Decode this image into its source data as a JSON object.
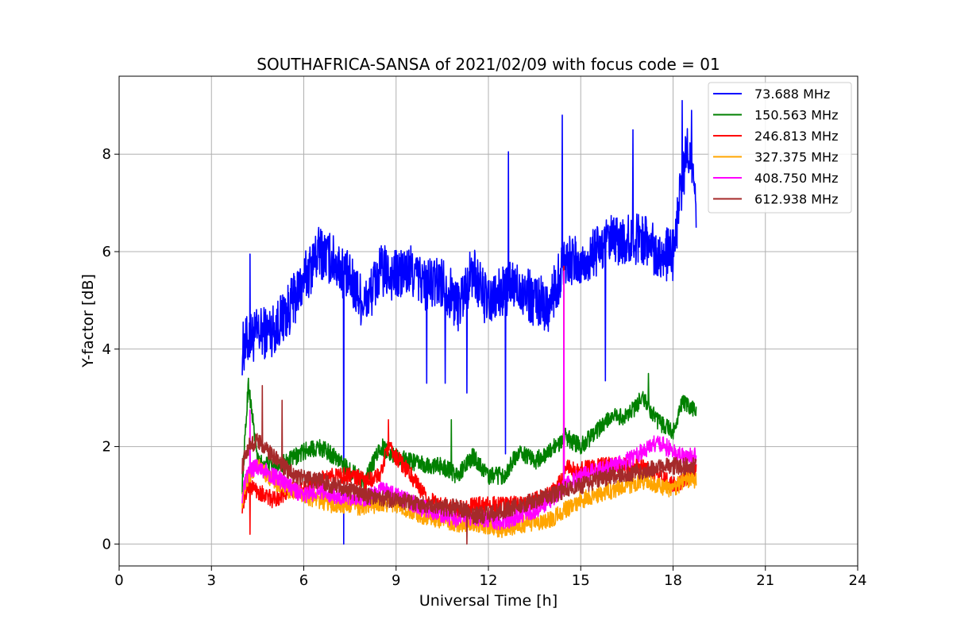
{
  "chart_data": {
    "type": "line",
    "title": "SOUTHAFRICA-SANSA of 2021/02/09 with focus code = 01",
    "xlabel": "Universal Time [h]",
    "ylabel": "Y-factor [dB]",
    "xlim": [
      0,
      24
    ],
    "ylim": [
      -0.45,
      9.6
    ],
    "xticks": [
      0,
      3,
      6,
      9,
      12,
      15,
      18,
      21,
      24
    ],
    "yticks": [
      0,
      2,
      4,
      6,
      8
    ],
    "grid": true,
    "legend_position": "top-right",
    "series": [
      {
        "name": " 73.688 MHz",
        "color": "#0000ff",
        "x": [
          4.0,
          4.2,
          4.5,
          5.0,
          5.5,
          6.0,
          6.5,
          7.0,
          7.5,
          8.0,
          8.5,
          9.0,
          9.5,
          10.0,
          10.5,
          11.0,
          11.5,
          12.0,
          12.5,
          13.0,
          13.5,
          14.0,
          14.5,
          15.0,
          15.5,
          16.0,
          16.5,
          17.0,
          17.5,
          18.0,
          18.3,
          18.5,
          18.75
        ],
        "y": [
          4.0,
          4.2,
          4.3,
          4.4,
          4.8,
          5.4,
          6.0,
          5.8,
          5.4,
          4.9,
          5.6,
          5.5,
          5.6,
          5.3,
          5.4,
          4.9,
          5.6,
          4.9,
          5.2,
          5.3,
          5.0,
          4.9,
          5.9,
          5.7,
          6.0,
          6.2,
          6.2,
          6.3,
          6.0,
          5.9,
          7.5,
          8.2,
          6.8
        ],
        "spikes": [
          {
            "x": 4.25,
            "y": 5.95
          },
          {
            "x": 7.3,
            "y": 0.0
          },
          {
            "x": 10.0,
            "y": 3.3
          },
          {
            "x": 10.6,
            "y": 3.3
          },
          {
            "x": 11.3,
            "y": 3.1
          },
          {
            "x": 12.55,
            "y": 1.85
          },
          {
            "x": 12.65,
            "y": 8.05
          },
          {
            "x": 14.4,
            "y": 8.8
          },
          {
            "x": 15.8,
            "y": 3.35
          },
          {
            "x": 16.7,
            "y": 8.5
          },
          {
            "x": 18.3,
            "y": 9.1
          },
          {
            "x": 18.6,
            "y": 8.9
          }
        ]
      },
      {
        "name": "150.563 MHz",
        "color": "#008000",
        "x": [
          4.0,
          4.2,
          4.5,
          5.0,
          5.5,
          6.0,
          6.5,
          7.0,
          7.5,
          8.0,
          8.5,
          9.0,
          9.5,
          10.0,
          10.5,
          11.0,
          11.5,
          12.0,
          12.5,
          13.0,
          13.5,
          14.0,
          14.5,
          15.0,
          15.5,
          16.0,
          16.5,
          17.0,
          17.5,
          18.0,
          18.3,
          18.5,
          18.75
        ],
        "y": [
          1.2,
          3.3,
          1.7,
          1.6,
          1.7,
          1.9,
          2.0,
          1.8,
          1.5,
          1.3,
          2.0,
          1.8,
          1.7,
          1.6,
          1.6,
          1.4,
          1.8,
          1.4,
          1.4,
          1.9,
          1.7,
          1.9,
          2.2,
          2.0,
          2.3,
          2.6,
          2.6,
          3.0,
          2.5,
          2.3,
          2.9,
          2.8,
          2.8
        ],
        "spikes": [
          {
            "x": 10.8,
            "y": 2.55
          },
          {
            "x": 17.2,
            "y": 3.5
          }
        ]
      },
      {
        "name": "246.813 MHz",
        "color": "#ff0000",
        "x": [
          4.0,
          4.2,
          4.5,
          5.0,
          5.5,
          6.0,
          6.5,
          7.0,
          7.5,
          8.0,
          8.5,
          8.7,
          9.0,
          9.5,
          10.0,
          10.5,
          11.0,
          11.5,
          12.0,
          12.5,
          13.0,
          13.5,
          14.0,
          14.4,
          14.5,
          15.0,
          15.5,
          16.0,
          16.5,
          17.0,
          17.5,
          18.0,
          18.3,
          18.5,
          18.75
        ],
        "y": [
          0.8,
          1.2,
          1.1,
          0.9,
          1.1,
          1.1,
          1.3,
          1.4,
          1.4,
          1.3,
          1.4,
          2.0,
          1.8,
          1.4,
          0.9,
          0.8,
          0.7,
          0.8,
          0.8,
          0.8,
          0.8,
          0.9,
          1.0,
          1.3,
          1.6,
          1.5,
          1.6,
          1.6,
          1.6,
          1.6,
          1.4,
          1.2,
          1.3,
          1.4,
          1.5
        ],
        "spikes": [
          {
            "x": 4.25,
            "y": 0.2
          },
          {
            "x": 8.75,
            "y": 2.55
          },
          {
            "x": 14.45,
            "y": 5.7
          }
        ]
      },
      {
        "name": "327.375 MHz",
        "color": "#ffa500",
        "x": [
          4.0,
          4.2,
          4.5,
          5.0,
          5.5,
          6.0,
          6.5,
          7.0,
          7.5,
          8.0,
          8.5,
          9.0,
          9.5,
          10.0,
          10.5,
          11.0,
          11.5,
          12.0,
          12.5,
          13.0,
          13.5,
          14.0,
          14.5,
          15.0,
          15.5,
          16.0,
          16.5,
          17.0,
          17.5,
          18.0,
          18.3,
          18.5,
          18.75
        ],
        "y": [
          0.9,
          1.4,
          1.6,
          1.3,
          1.1,
          1.0,
          0.9,
          0.8,
          0.8,
          0.75,
          0.85,
          0.8,
          0.65,
          0.55,
          0.5,
          0.4,
          0.45,
          0.35,
          0.3,
          0.4,
          0.45,
          0.5,
          0.7,
          0.9,
          1.0,
          1.1,
          1.2,
          1.3,
          1.2,
          1.1,
          1.3,
          1.3,
          1.3
        ],
        "spikes": []
      },
      {
        "name": "408.750 MHz",
        "color": "#ff00ff",
        "x": [
          4.0,
          4.2,
          4.5,
          5.0,
          5.5,
          6.0,
          6.5,
          7.0,
          7.5,
          8.0,
          8.5,
          9.0,
          9.5,
          10.0,
          10.5,
          11.0,
          11.5,
          12.0,
          12.5,
          13.0,
          13.5,
          14.0,
          14.5,
          15.0,
          15.5,
          16.0,
          16.5,
          17.0,
          17.5,
          18.0,
          18.3,
          18.5,
          18.75
        ],
        "y": [
          1.0,
          1.5,
          1.6,
          1.4,
          1.2,
          1.0,
          1.1,
          1.0,
          0.95,
          0.9,
          1.1,
          1.0,
          0.85,
          0.7,
          0.6,
          0.5,
          0.55,
          0.5,
          0.45,
          0.6,
          0.7,
          0.9,
          1.2,
          1.4,
          1.5,
          1.6,
          1.7,
          1.9,
          2.1,
          1.9,
          1.8,
          1.8,
          1.8
        ],
        "spikes": [
          {
            "x": 4.25,
            "y": 2.75
          },
          {
            "x": 14.45,
            "y": 5.6
          }
        ]
      },
      {
        "name": "612.938 MHz",
        "color": "#a52a2a",
        "x": [
          4.0,
          4.2,
          4.5,
          5.0,
          5.5,
          6.0,
          6.5,
          7.0,
          7.5,
          8.0,
          8.5,
          9.0,
          9.5,
          10.0,
          10.5,
          11.0,
          11.3,
          11.5,
          12.0,
          12.5,
          13.0,
          13.5,
          14.0,
          14.5,
          15.0,
          15.5,
          16.0,
          16.5,
          17.0,
          17.5,
          18.0,
          18.3,
          18.5,
          18.75
        ],
        "y": [
          1.6,
          2.0,
          2.1,
          1.8,
          1.5,
          1.35,
          1.3,
          1.2,
          1.1,
          1.0,
          0.95,
          0.9,
          0.85,
          0.8,
          0.75,
          0.75,
          0.7,
          0.6,
          0.6,
          0.7,
          0.8,
          0.9,
          1.0,
          1.1,
          1.2,
          1.3,
          1.4,
          1.45,
          1.5,
          1.55,
          1.6,
          1.6,
          1.6,
          1.6
        ],
        "spikes": [
          {
            "x": 4.65,
            "y": 3.25
          },
          {
            "x": 5.3,
            "y": 2.95
          },
          {
            "x": 11.3,
            "y": 0.0
          }
        ]
      }
    ]
  }
}
